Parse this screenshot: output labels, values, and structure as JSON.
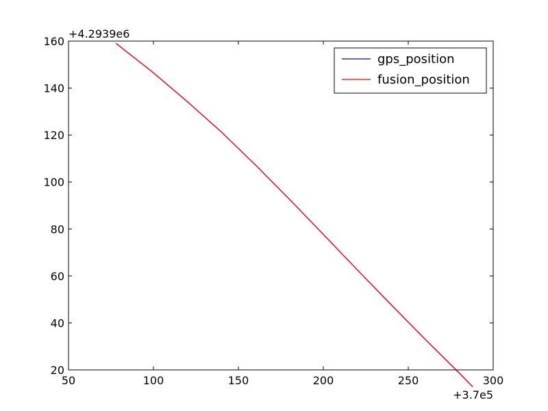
{
  "chart_data": {
    "type": "line",
    "xlim": [
      50,
      300
    ],
    "ylim": [
      20,
      160
    ],
    "x_ticks": [
      50,
      100,
      150,
      200,
      250,
      300
    ],
    "y_ticks": [
      20,
      40,
      60,
      80,
      100,
      120,
      140,
      160
    ],
    "x_offset_label": "+3.7e5",
    "y_offset_label": "+4.2939e6",
    "grid": false,
    "legend_position": "top-right",
    "series": [
      {
        "name": "gps_position",
        "color": "#0000ff",
        "x": [
          78,
          100,
          120,
          140,
          160,
          180,
          200,
          220,
          240,
          260,
          280,
          288
        ],
        "y": [
          159,
          146.5,
          134.2,
          121.3,
          107.3,
          92.7,
          77.7,
          62.6,
          47.7,
          33.0,
          18.7,
          12.8
        ]
      },
      {
        "name": "fusion_position",
        "color": "#ff0000",
        "x": [
          78,
          100,
          120,
          140,
          160,
          180,
          200,
          220,
          240,
          260,
          280,
          288
        ],
        "y": [
          159,
          146.5,
          134.2,
          121.3,
          107.3,
          92.7,
          77.7,
          62.6,
          47.7,
          33.0,
          18.7,
          12.8
        ]
      }
    ]
  }
}
